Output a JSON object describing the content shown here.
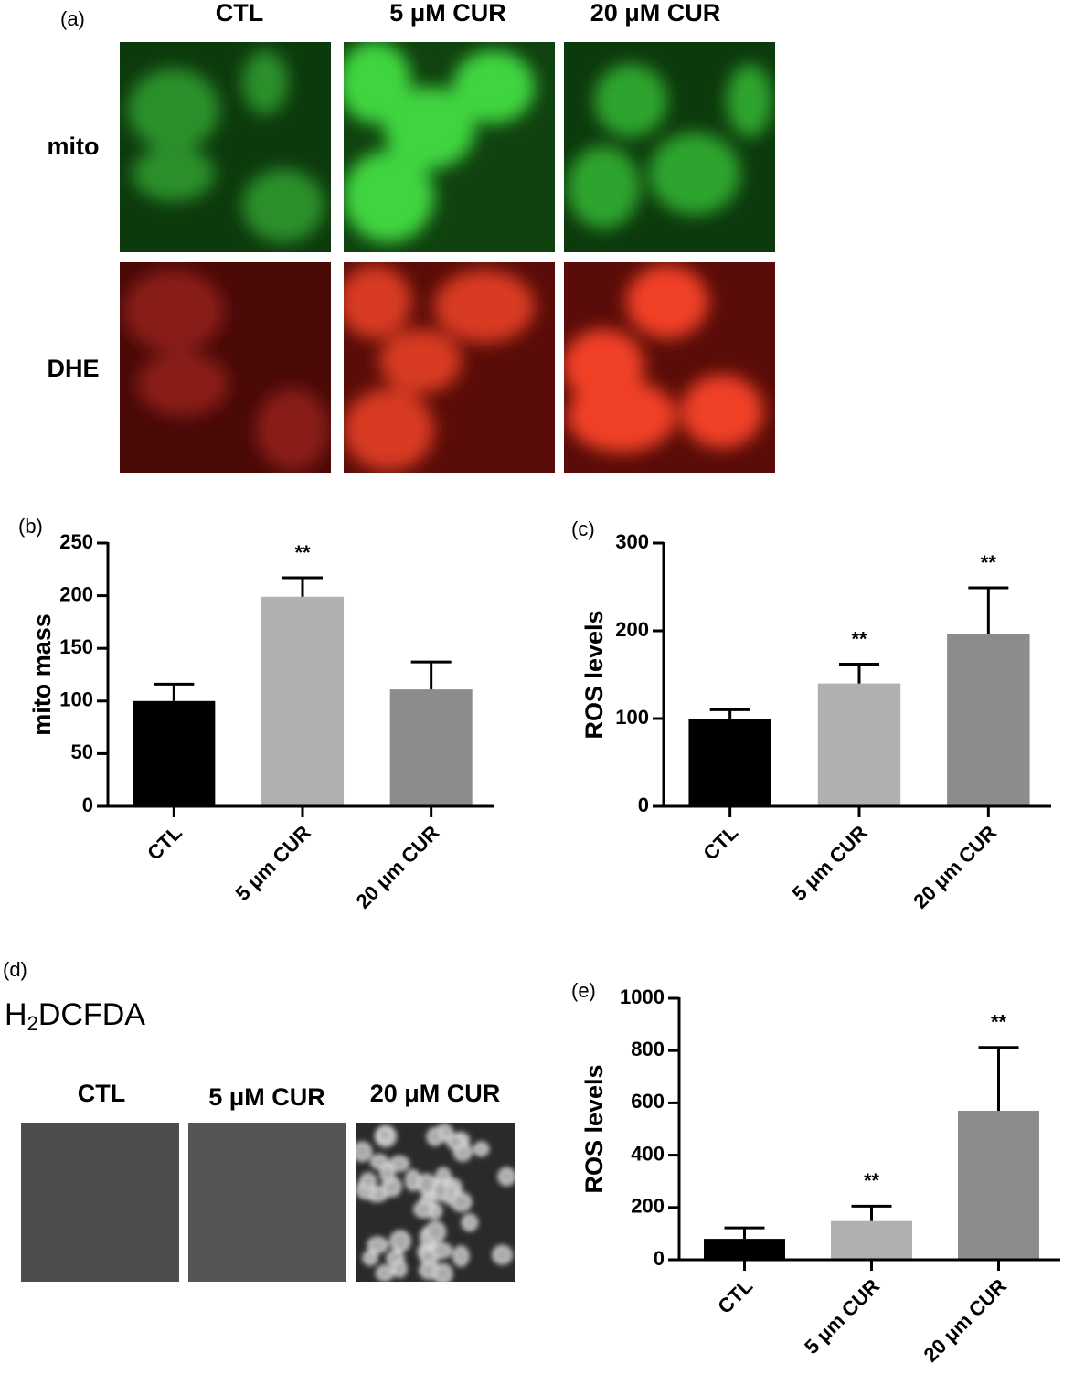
{
  "panel_a": {
    "label": "(a)",
    "columns": [
      "CTL",
      "5 μM CUR",
      "20 μM CUR"
    ],
    "rows": [
      "mito",
      "DHE"
    ]
  },
  "panel_d": {
    "label": "(d)",
    "title_parts": [
      "H",
      "2",
      "DCFDA"
    ],
    "columns": [
      "CTL",
      "5 μM CUR",
      "20 μM CUR"
    ]
  },
  "chart_data": [
    {
      "type": "bar",
      "panel_label": "(b)",
      "y_label": "mito mass",
      "categories": [
        "CTL",
        "5 μm CUR",
        "20 μm CUR"
      ],
      "values": [
        100,
        199,
        111
      ],
      "errors": [
        16,
        18,
        26
      ],
      "significance": [
        null,
        "**",
        null
      ],
      "colors": [
        "#000000",
        "#b0b0b0",
        "#8c8c8c"
      ],
      "ylim": [
        0,
        250
      ],
      "yticks": [
        0,
        50,
        100,
        150,
        200,
        250
      ]
    },
    {
      "type": "bar",
      "panel_label": "(c)",
      "y_label": "ROS levels",
      "categories": [
        "CTL",
        "5 μm CUR",
        "20 μm CUR"
      ],
      "values": [
        100,
        140,
        196
      ],
      "errors": [
        10,
        22,
        53
      ],
      "significance": [
        null,
        "**",
        "**"
      ],
      "colors": [
        "#000000",
        "#b0b0b0",
        "#8c8c8c"
      ],
      "ylim": [
        0,
        300
      ],
      "yticks": [
        0,
        100,
        200,
        300
      ]
    },
    {
      "type": "bar",
      "panel_label": "(e)",
      "y_label": "ROS levels",
      "categories": [
        "CTL",
        "5 μm CUR",
        "20 μm CUR"
      ],
      "values": [
        80,
        148,
        570
      ],
      "errors": [
        42,
        57,
        242
      ],
      "significance": [
        null,
        "**",
        "**"
      ],
      "colors": [
        "#000000",
        "#b0b0b0",
        "#8c8c8c"
      ],
      "ylim": [
        0,
        1000
      ],
      "yticks": [
        0,
        200,
        400,
        600,
        800,
        1000
      ]
    }
  ]
}
